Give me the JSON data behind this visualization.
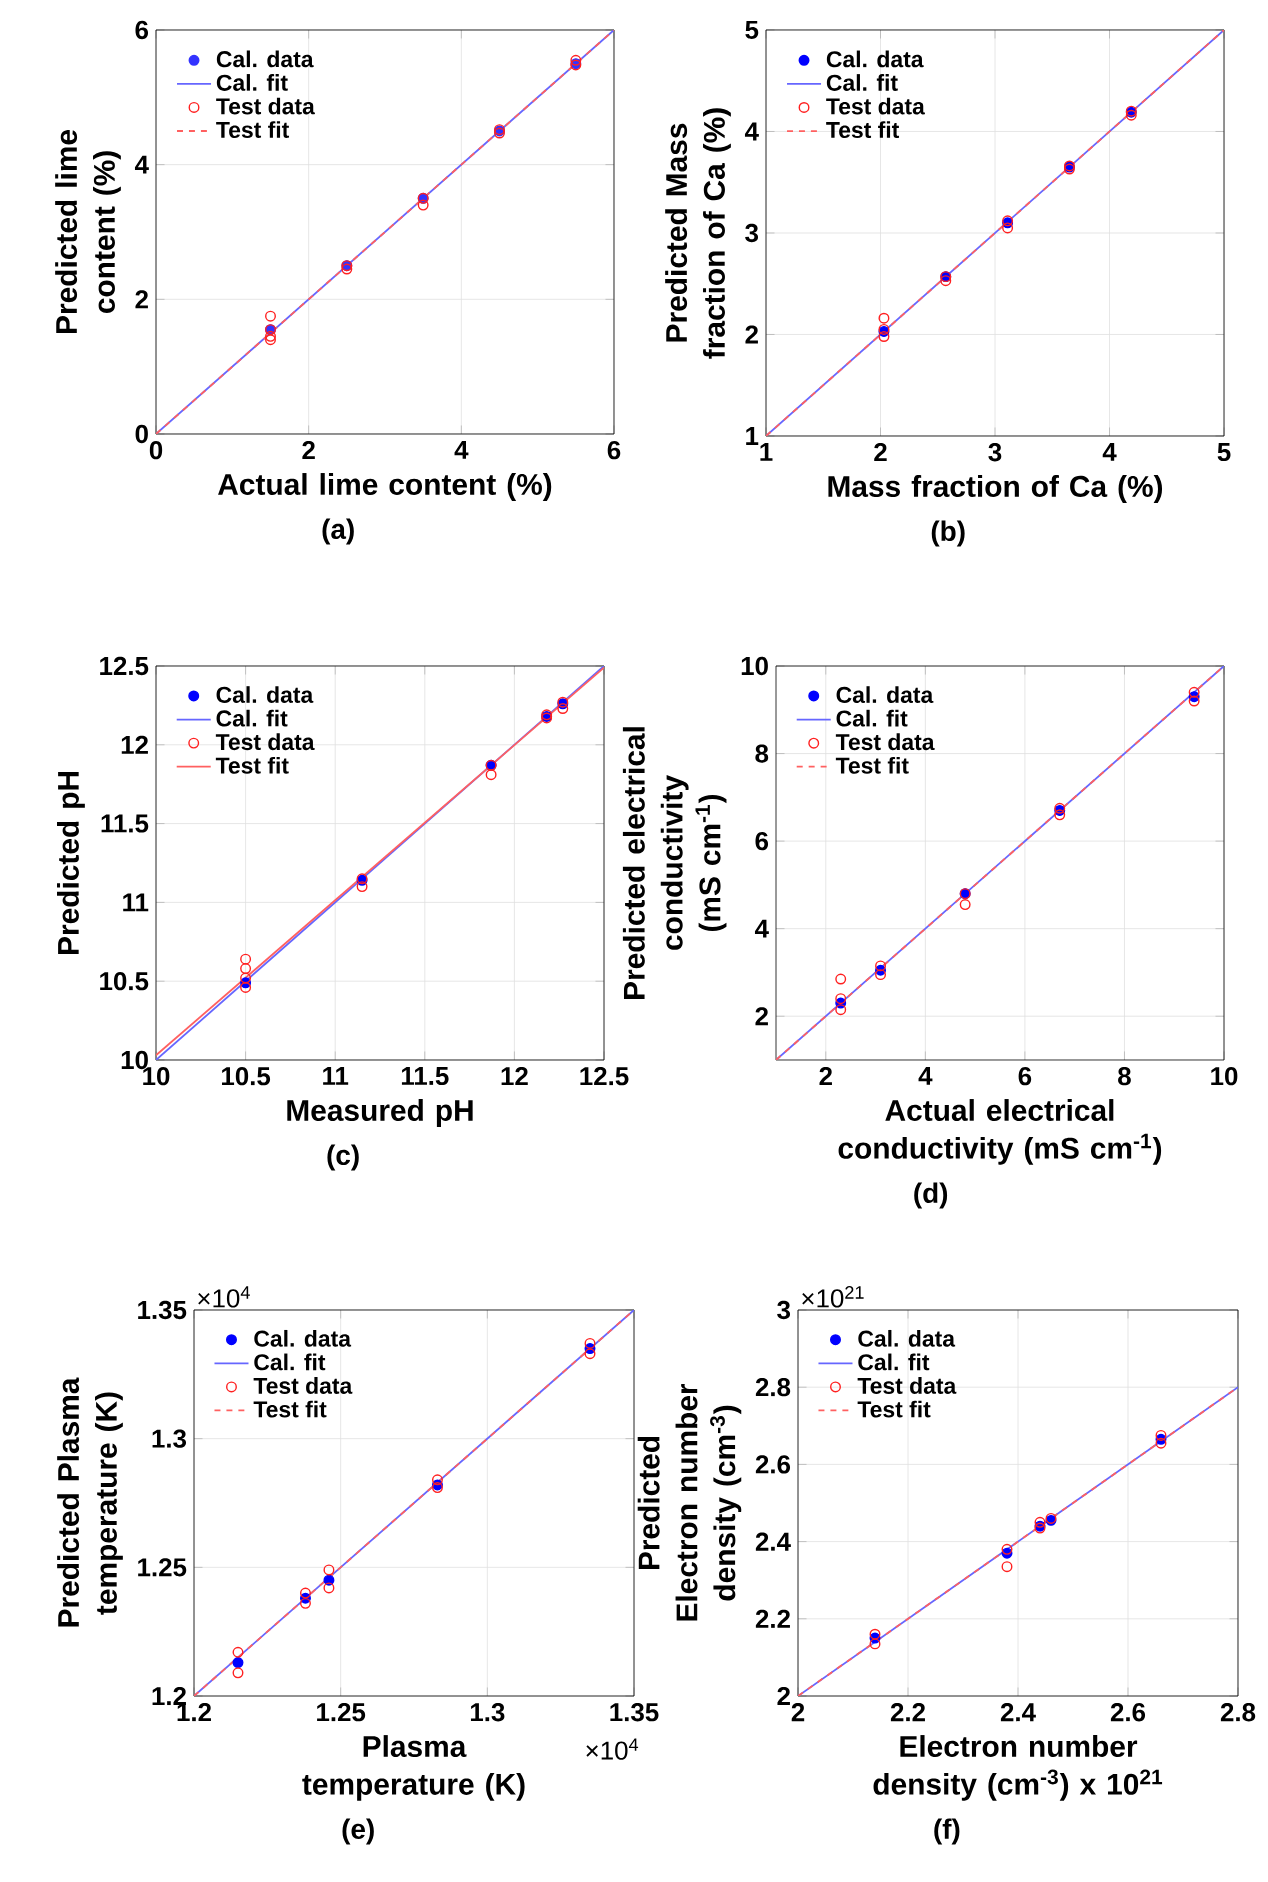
{
  "chart_data": [
    {
      "type": "scatter",
      "xlabel": "Actual lime content (%)",
      "ylabel": "Predicted lime content (%)",
      "xlim": [
        0,
        6
      ],
      "ylim": [
        0,
        6
      ],
      "xticks": [
        0,
        2,
        4,
        6
      ],
      "yticks": [
        0,
        2,
        4,
        6
      ],
      "grid": true,
      "legend": "top left",
      "annotations": [
        "(a)"
      ],
      "series": [
        {
          "name": "Cal. data",
          "color": "#3333ff",
          "marker": "circle",
          "x": [
            1.5,
            2.5,
            3.5,
            4.5,
            5.5
          ],
          "values": [
            1.55,
            2.5,
            3.5,
            4.5,
            5.5
          ]
        },
        {
          "name": "Cal. fit",
          "type": "line",
          "color": "#6666ff",
          "line_style": "solid",
          "x": [
            0,
            6
          ],
          "values": [
            0,
            6
          ]
        },
        {
          "name": "Test data",
          "color": "#ff2020",
          "marker": "circle",
          "x": [
            1.5,
            1.5,
            1.5,
            1.5,
            2.5,
            2.5,
            3.5,
            3.5,
            4.5,
            4.5,
            5.5,
            5.5
          ],
          "values": [
            1.75,
            1.55,
            1.45,
            1.4,
            2.5,
            2.45,
            3.5,
            3.4,
            4.52,
            4.47,
            5.55,
            5.48
          ]
        },
        {
          "name": "Test fit",
          "type": "line",
          "color": "#ff6060",
          "line_style": "dashed",
          "x": [
            0,
            6
          ],
          "values": [
            0,
            6
          ]
        }
      ]
    },
    {
      "type": "scatter",
      "xlabel": "Mass fraction of Ca (%)",
      "ylabel": "Predicted Mass fraction of Ca (%)",
      "xlim": [
        1,
        5
      ],
      "ylim": [
        1,
        5
      ],
      "xticks": [
        1,
        2,
        3,
        4,
        5
      ],
      "yticks": [
        1,
        2,
        3,
        4,
        5
      ],
      "grid": true,
      "legend": "top left",
      "annotations": [
        "(b)"
      ],
      "series": [
        {
          "name": "Cal. data",
          "color": "#0000ff",
          "marker": "circle",
          "x": [
            2.03,
            2.57,
            3.11,
            3.65,
            4.19
          ],
          "values": [
            2.03,
            2.57,
            3.1,
            3.65,
            4.19
          ]
        },
        {
          "name": "Cal. fit",
          "type": "line",
          "color": "#6666ff",
          "line_style": "solid",
          "x": [
            1,
            5
          ],
          "values": [
            1,
            5
          ]
        },
        {
          "name": "Test data",
          "color": "#ff2020",
          "marker": "circle",
          "x": [
            2.03,
            2.03,
            2.03,
            2.57,
            2.57,
            3.11,
            3.11,
            3.65,
            3.65,
            4.19,
            4.19
          ],
          "values": [
            2.16,
            2.05,
            1.98,
            2.57,
            2.53,
            3.12,
            3.05,
            3.66,
            3.63,
            4.2,
            4.16
          ]
        },
        {
          "name": "Test fit",
          "type": "line",
          "color": "#ff6060",
          "line_style": "dashed",
          "x": [
            1,
            5
          ],
          "values": [
            1,
            5
          ]
        }
      ]
    },
    {
      "type": "scatter",
      "xlabel": "Measured pH",
      "ylabel": "Predicted pH",
      "xlim": [
        10,
        12.5
      ],
      "ylim": [
        10,
        12.5
      ],
      "xticks": [
        10,
        10.5,
        11,
        11.5,
        12,
        12.5
      ],
      "yticks": [
        10,
        10.5,
        11,
        11.5,
        12,
        12.5
      ],
      "grid": true,
      "legend": "top left",
      "annotations": [
        "(c)"
      ],
      "series": [
        {
          "name": "Cal. data",
          "color": "#0000ff",
          "marker": "circle",
          "x": [
            10.5,
            11.15,
            11.87,
            12.18,
            12.27
          ],
          "values": [
            10.49,
            11.14,
            11.87,
            12.18,
            12.26
          ]
        },
        {
          "name": "Cal. fit",
          "type": "line",
          "color": "#6666ff",
          "line_style": "solid",
          "x": [
            10,
            12.5
          ],
          "values": [
            10,
            12.5
          ]
        },
        {
          "name": "Test data",
          "color": "#ff2020",
          "marker": "circle",
          "x": [
            10.5,
            10.5,
            10.5,
            10.5,
            11.15,
            11.15,
            11.87,
            11.87,
            12.18,
            12.18,
            12.27,
            12.27
          ],
          "values": [
            10.64,
            10.58,
            10.52,
            10.46,
            11.15,
            11.1,
            11.87,
            11.81,
            12.19,
            12.17,
            12.27,
            12.23
          ]
        },
        {
          "name": "Test fit",
          "type": "line",
          "color": "#ff6060",
          "line_style": "solid",
          "x": [
            10,
            12.5
          ],
          "values": [
            10.03,
            12.49
          ]
        }
      ]
    },
    {
      "type": "scatter",
      "xlabel": "Actual electrical conductivity (mS cm$^{-1}$)",
      "ylabel": "Predicted electrical conductivity (mS cm$^{-1}$)",
      "xlim": [
        1,
        10
      ],
      "ylim": [
        1,
        10
      ],
      "xticks": [
        2,
        4,
        6,
        8,
        10
      ],
      "yticks": [
        2,
        4,
        6,
        8,
        10
      ],
      "grid": true,
      "legend": "top left",
      "annotations": [
        "(d)"
      ],
      "series": [
        {
          "name": "Cal. data",
          "color": "#0000ff",
          "marker": "circle",
          "x": [
            2.3,
            3.1,
            4.8,
            6.7,
            9.4
          ],
          "values": [
            2.3,
            3.05,
            4.8,
            6.7,
            9.3
          ]
        },
        {
          "name": "Cal. fit",
          "type": "line",
          "color": "#6666ff",
          "line_style": "solid",
          "x": [
            1,
            10
          ],
          "values": [
            1,
            10
          ]
        },
        {
          "name": "Test data",
          "color": "#ff2020",
          "marker": "circle",
          "x": [
            2.3,
            2.3,
            2.3,
            3.1,
            3.1,
            4.8,
            4.8,
            6.7,
            6.7,
            9.4,
            9.4
          ],
          "values": [
            2.85,
            2.4,
            2.15,
            3.15,
            2.95,
            4.8,
            4.55,
            6.75,
            6.6,
            9.4,
            9.2
          ]
        },
        {
          "name": "Test fit",
          "type": "line",
          "color": "#ff6060",
          "line_style": "dashed",
          "x": [
            1,
            10
          ],
          "values": [
            1,
            10
          ]
        }
      ]
    },
    {
      "type": "scatter",
      "xlabel": "Plasma temperature (K)",
      "ylabel": "Predicted Plasma temperature (K)",
      "xlim": [
        1.2,
        1.35
      ],
      "ylim": [
        1.2,
        1.35
      ],
      "xticks": [
        1.2,
        1.25,
        1.3,
        1.35
      ],
      "yticks": [
        1.2,
        1.25,
        1.3,
        1.35
      ],
      "grid": true,
      "legend": "top left",
      "annotations": [
        "×10$^{4}$",
        "×10$^{4}$",
        "(e)"
      ],
      "series": [
        {
          "name": "Cal. data",
          "color": "#0000ff",
          "marker": "circle",
          "x": [
            1.215,
            1.238,
            1.246,
            1.283,
            1.335
          ],
          "values": [
            1.213,
            1.238,
            1.245,
            1.282,
            1.335
          ]
        },
        {
          "name": "Cal. fit",
          "type": "line",
          "color": "#6666ff",
          "line_style": "solid",
          "x": [
            1.2,
            1.35
          ],
          "values": [
            1.2,
            1.35
          ]
        },
        {
          "name": "Test data",
          "color": "#ff2020",
          "marker": "circle",
          "x": [
            1.215,
            1.215,
            1.238,
            1.238,
            1.246,
            1.246,
            1.283,
            1.283,
            1.335,
            1.335
          ],
          "values": [
            1.217,
            1.209,
            1.24,
            1.236,
            1.249,
            1.242,
            1.284,
            1.281,
            1.337,
            1.333
          ]
        },
        {
          "name": "Test fit",
          "type": "line",
          "color": "#ff6060",
          "line_style": "dashed",
          "x": [
            1.2,
            1.35
          ],
          "values": [
            1.2,
            1.35
          ]
        }
      ]
    },
    {
      "type": "scatter",
      "xlabel": "Electron number density (cm$^{-3}$)  x 10$^{21}$",
      "ylabel": "Predicted Electron number density (cm$^{-3}$)",
      "xlim": [
        2,
        2.8
      ],
      "ylim": [
        2,
        3
      ],
      "xticks": [
        2,
        2.2,
        2.4,
        2.6,
        2.8
      ],
      "yticks": [
        2,
        2.2,
        2.4,
        2.6,
        2.8,
        3
      ],
      "grid": true,
      "legend": "top left",
      "annotations": [
        "×10$^{21}$",
        "(f)"
      ],
      "series": [
        {
          "name": "Cal. data",
          "color": "#0000ff",
          "marker": "circle",
          "x": [
            2.14,
            2.38,
            2.44,
            2.46,
            2.66
          ],
          "values": [
            2.15,
            2.37,
            2.44,
            2.455,
            2.665
          ]
        },
        {
          "name": "Cal. fit",
          "type": "line",
          "color": "#6666ff",
          "line_style": "solid",
          "x": [
            2,
            2.8
          ],
          "values": [
            2,
            2.8
          ]
        },
        {
          "name": "Test data",
          "color": "#ff2020",
          "marker": "circle",
          "x": [
            2.14,
            2.14,
            2.38,
            2.38,
            2.44,
            2.44,
            2.46,
            2.66,
            2.66
          ],
          "values": [
            2.16,
            2.135,
            2.38,
            2.335,
            2.45,
            2.435,
            2.46,
            2.675,
            2.655
          ]
        },
        {
          "name": "Test fit",
          "type": "line",
          "color": "#ff6060",
          "line_style": "dashed",
          "x": [
            2,
            2.8
          ],
          "values": [
            2,
            2.8
          ]
        }
      ]
    }
  ]
}
